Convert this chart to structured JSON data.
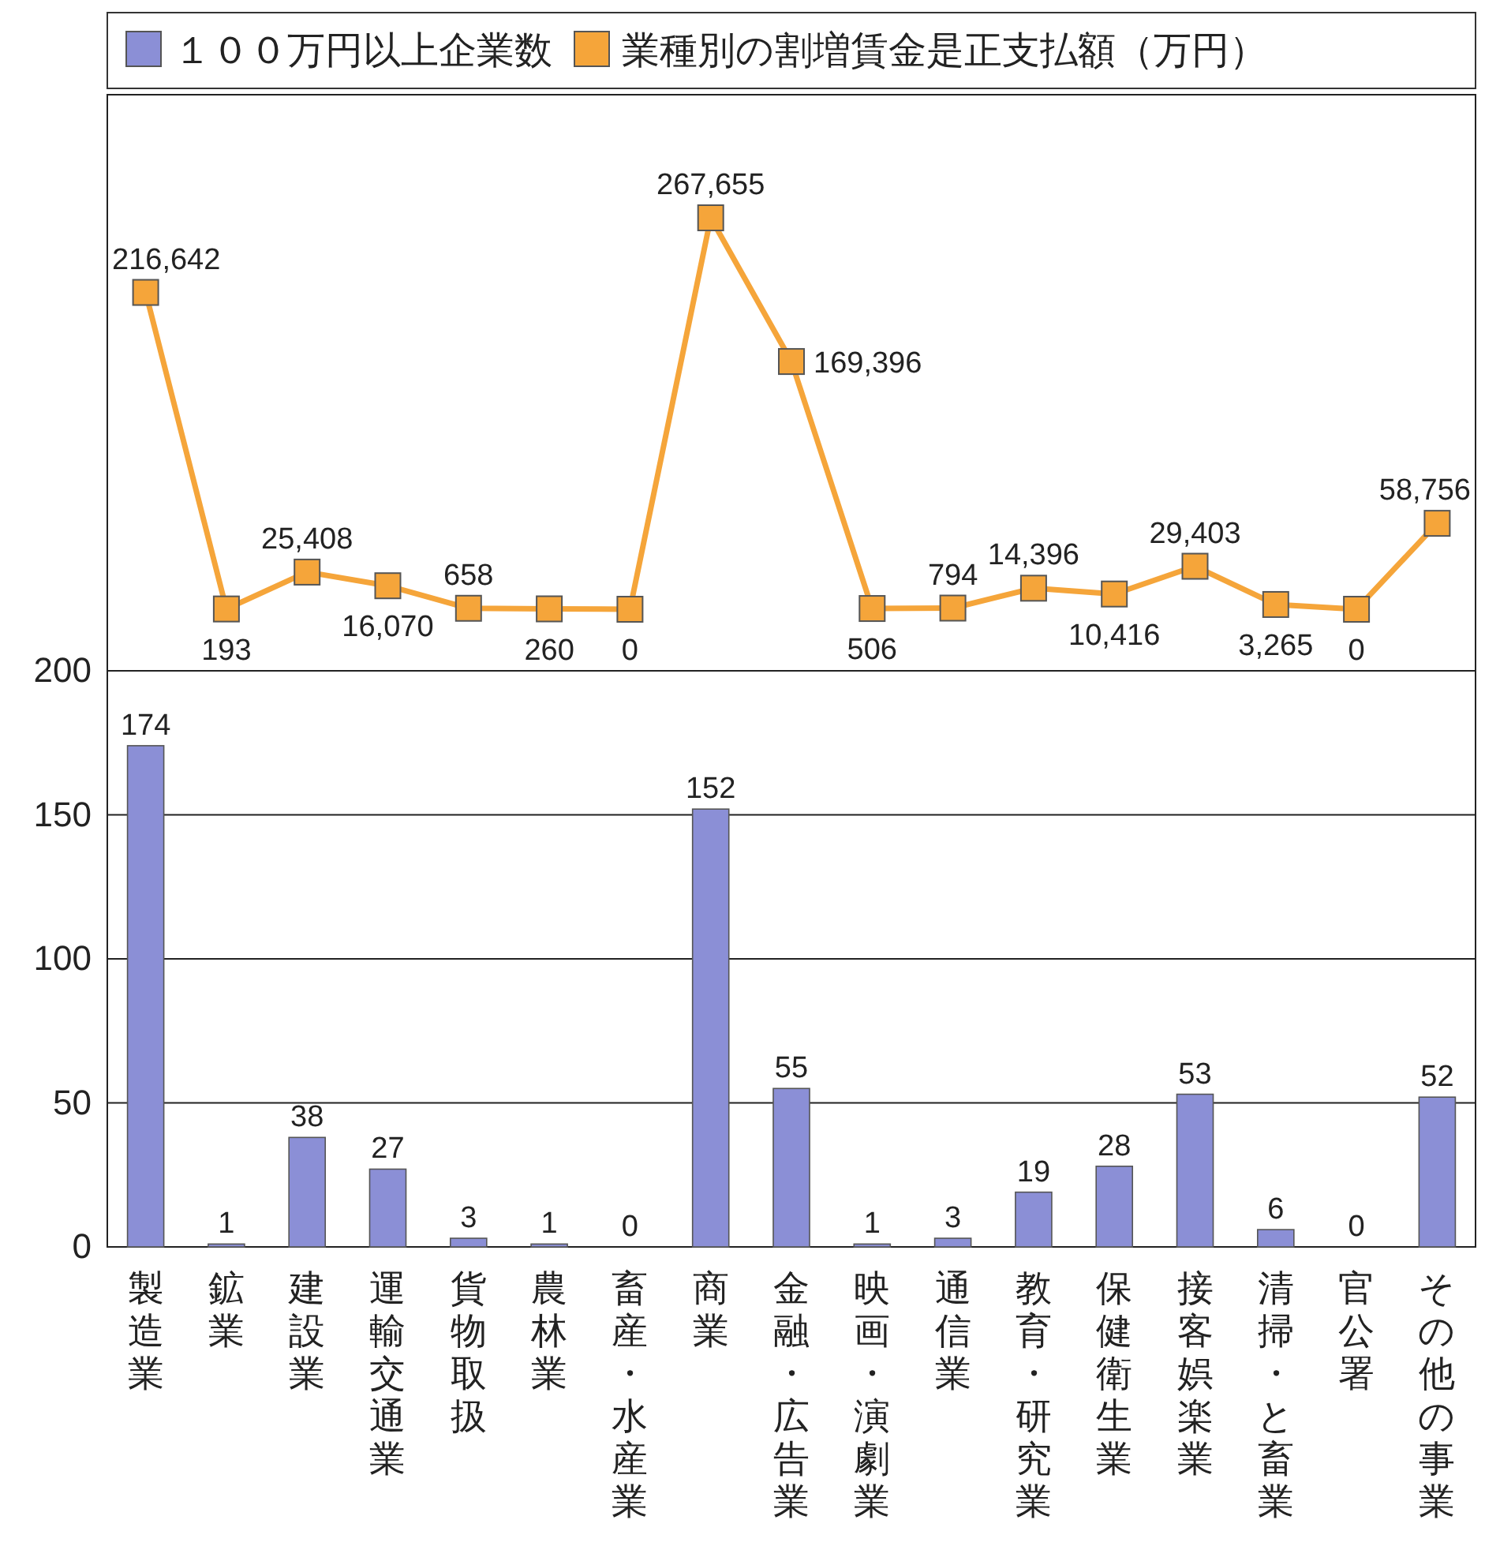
{
  "chart_data": [
    {
      "type": "line",
      "categories": [
        null,
        null,
        null,
        null,
        null,
        null,
        null,
        null,
        null,
        null,
        null,
        null,
        null,
        null,
        null,
        null,
        null
      ],
      "series": [
        {
          "name": "業種別の割増賃金是正支払額（万円）",
          "color": "#f5a53a",
          "values": [
            216642,
            193,
            25408,
            16070,
            658,
            260,
            0,
            267655,
            169396,
            506,
            794,
            14396,
            10416,
            29403,
            3265,
            0,
            58756
          ],
          "value_labels": [
            "216,642",
            "193",
            "25,408",
            "16,070",
            "658",
            "260",
            "0",
            "267,655",
            "169,396",
            "506",
            "794",
            "14,396",
            "10,416",
            "29,403",
            "3,265",
            "0",
            "58,756"
          ]
        }
      ],
      "marker": "square",
      "legend": "top"
    },
    {
      "type": "bar",
      "categories": [
        "製造業",
        "鉱業",
        "建設業",
        "運輸交通業",
        "貨物取扱",
        "農林業",
        "畜産・水産業",
        "商業",
        "金融・広告業",
        "映画・演劇業",
        "通信業",
        "教育・研究業",
        "保健衛生業",
        "接客娯楽業",
        "清掃・と畜業",
        "官公署",
        "その他の事業"
      ],
      "series": [
        {
          "name": "１００万円以上企業数",
          "color": "#8b8fd6",
          "values": [
            174,
            1,
            38,
            27,
            3,
            1,
            0,
            152,
            55,
            1,
            3,
            19,
            28,
            53,
            6,
            0,
            52
          ]
        }
      ],
      "ylim": [
        0,
        200
      ],
      "yticks": [
        0,
        50,
        100,
        150,
        200
      ],
      "grid": "y",
      "data_labels": true,
      "legend": "top"
    }
  ]
}
